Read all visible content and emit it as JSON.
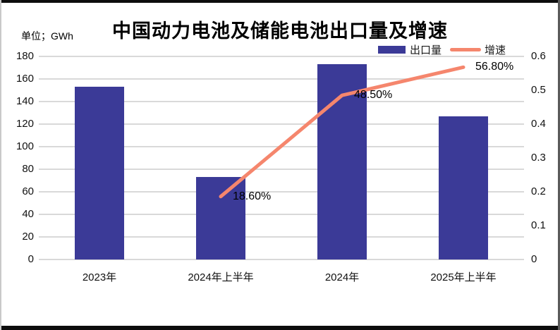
{
  "title": "中国动力电池及储能电池出口量及增速",
  "unit_label": "单位；GWh",
  "colors": {
    "bar": "#3b3a97",
    "line": "#f5866d",
    "gridline": "#d9d9d9",
    "text": "#000000",
    "frame": "#0d0d0d"
  },
  "legend": {
    "position": "top-right",
    "items": [
      {
        "label": "出口量",
        "marker": "bar-swatch"
      },
      {
        "label": "增速",
        "marker": "line-swatch"
      }
    ]
  },
  "chart_data": {
    "type": "bar",
    "subtype": "combo-bar-line-dual-axis",
    "title": "中国动力电池及储能电池出口量及增速",
    "categories": [
      "2023年",
      "2024年上半年",
      "2024年",
      "2025年上半年"
    ],
    "series": [
      {
        "name": "出口量",
        "type": "bar",
        "axis": "left",
        "unit": "GWh",
        "color": "#3b3a97",
        "values": [
          153,
          73,
          173,
          127
        ]
      },
      {
        "name": "增速",
        "type": "line",
        "axis": "right",
        "color": "#f5866d",
        "values": [
          null,
          0.186,
          0.485,
          0.568
        ],
        "point_labels": [
          null,
          "18.60%",
          "48.50%",
          "56.80%"
        ]
      }
    ],
    "left_axis": {
      "label": "单位；GWh",
      "min": 0,
      "max": 180,
      "tick_step": 20,
      "tick_labels": [
        "180",
        "160",
        "140",
        "120",
        "100",
        "80",
        "60",
        "40",
        "20",
        "0"
      ]
    },
    "right_axis": {
      "min": 0,
      "max": 0.6,
      "tick_step": 0.1,
      "tick_labels": [
        "0.6",
        "0.5",
        "0.4",
        "0.3",
        "0.2",
        "0.1",
        "0"
      ]
    },
    "grid": "horizontal",
    "legend_position": "top-right"
  }
}
